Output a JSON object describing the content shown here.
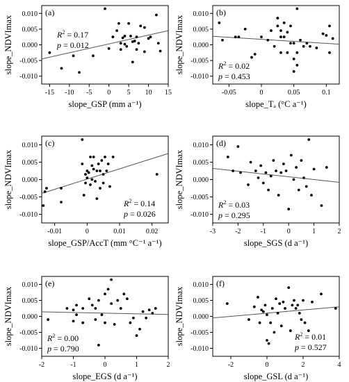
{
  "chart_data": [
    {
      "panel": "(a)",
      "type": "scatter",
      "xlabel": "slope_GSP (mm a⁻¹)",
      "ylabel": "slope_NDVImax",
      "xlim": [
        -17,
        15
      ],
      "ylim": [
        -0.0125,
        0.0125
      ],
      "xticks": [
        -15,
        -10,
        -5,
        0,
        5,
        10,
        15
      ],
      "yticks": [
        -0.01,
        -0.005,
        0.0,
        0.005,
        0.01
      ],
      "r2": "0.17",
      "p": "0.012",
      "stats_pos": "top-left",
      "fit": {
        "x": [
          -17,
          15
        ],
        "y": [
          -0.0045,
          0.0045
        ]
      },
      "points": [
        [
          -15,
          -0.0025
        ],
        [
          -12,
          -0.0075
        ],
        [
          -9,
          -0.0035
        ],
        [
          -7.5,
          -0.0088
        ],
        [
          -4,
          -0.0035
        ],
        [
          -1,
          0.0115
        ],
        [
          0,
          -0.0012
        ],
        [
          1,
          0.0025
        ],
        [
          2,
          0.0045
        ],
        [
          2.5,
          0.0068
        ],
        [
          3,
          0.0005
        ],
        [
          3,
          -0.0015
        ],
        [
          3.5,
          0.0022
        ],
        [
          4,
          0.0028
        ],
        [
          4,
          0.0002
        ],
        [
          4.5,
          -0.0005
        ],
        [
          5,
          0.0068
        ],
        [
          5.5,
          0.0028
        ],
        [
          6,
          0.001
        ],
        [
          6,
          -0.0055
        ],
        [
          6.5,
          0.0012
        ],
        [
          7,
          -0.0015
        ],
        [
          7,
          0.0025
        ],
        [
          7.5,
          0.0005
        ],
        [
          8,
          0.006
        ],
        [
          9,
          0.0055
        ],
        [
          9,
          -0.0022
        ],
        [
          10,
          0.002
        ],
        [
          10.5,
          0.0025
        ],
        [
          12,
          0.0095
        ],
        [
          12.5,
          0.0005
        ],
        [
          13,
          -0.002
        ]
      ]
    },
    {
      "panel": "(b)",
      "type": "scatter",
      "xlabel": "slope_Tₐ (°C a⁻¹)",
      "ylabel": "slope_NDVImax",
      "xlim": [
        -0.075,
        0.12
      ],
      "ylim": [
        -0.0125,
        0.0125
      ],
      "xticks": [
        -0.05,
        0.0,
        0.05,
        0.1
      ],
      "yticks": [
        -0.01,
        -0.005,
        0.0,
        0.005,
        0.01
      ],
      "r2": "0.02",
      "p": "0.453",
      "stats_pos": "bottom-left",
      "fit": {
        "x": [
          -0.075,
          0.12
        ],
        "y": [
          0.0027,
          0.0002
        ]
      },
      "points": [
        [
          -0.065,
          0.007
        ],
        [
          -0.06,
          0.0015
        ],
        [
          -0.04,
          0.0025
        ],
        [
          -0.035,
          0.0025
        ],
        [
          -0.025,
          0.005
        ],
        [
          -0.015,
          -0.004
        ],
        [
          -0.01,
          -0.003
        ],
        [
          0.0,
          0.0025
        ],
        [
          0.01,
          0.0015
        ],
        [
          0.015,
          0.0045
        ],
        [
          0.02,
          -0.0005
        ],
        [
          0.025,
          0.006
        ],
        [
          0.025,
          0.0085
        ],
        [
          0.03,
          0.0045
        ],
        [
          0.03,
          0.0025
        ],
        [
          0.03,
          -0.0025
        ],
        [
          0.035,
          0.007
        ],
        [
          0.035,
          0.0025
        ],
        [
          0.04,
          -0.0025
        ],
        [
          0.04,
          0.004
        ],
        [
          0.045,
          0.006
        ],
        [
          0.045,
          0.0005
        ],
        [
          0.05,
          -0.0045
        ],
        [
          0.05,
          -0.0085
        ],
        [
          0.05,
          0.0005
        ],
        [
          0.055,
          0.0115
        ],
        [
          0.055,
          -0.0065
        ],
        [
          0.055,
          -0.0025
        ],
        [
          0.06,
          0.0015
        ],
        [
          0.065,
          -0.0005
        ],
        [
          0.07,
          0.0005
        ],
        [
          0.075,
          -0.0005
        ],
        [
          0.085,
          -0.001
        ],
        [
          0.095,
          0.0035
        ],
        [
          0.1,
          0.003
        ],
        [
          0.105,
          0.006
        ],
        [
          0.105,
          -0.0025
        ],
        [
          0.11,
          0.002
        ]
      ]
    },
    {
      "panel": "(c)",
      "type": "scatter",
      "xlabel": "slope_GSP/AccT (mm °C⁻¹ a⁻¹)",
      "ylabel": "slope_NDVImax",
      "xlim": [
        -0.014,
        0.025
      ],
      "ylim": [
        -0.0125,
        0.0125
      ],
      "xticks": [
        -0.01,
        0.0,
        0.01,
        0.02
      ],
      "yticks": [
        -0.01,
        -0.005,
        0.0,
        0.005,
        0.01
      ],
      "r2": "0.14",
      "p": "0.026",
      "stats_pos": "bottom-right",
      "fit": {
        "x": [
          -0.014,
          0.025
        ],
        "y": [
          -0.004,
          0.0075
        ]
      },
      "points": [
        [
          -0.0135,
          -0.0075
        ],
        [
          -0.013,
          -0.0035
        ],
        [
          -0.0125,
          -0.0025
        ],
        [
          -0.008,
          -0.0065
        ],
        [
          -0.008,
          -0.0025
        ],
        [
          -0.0015,
          0.0115
        ],
        [
          -0.0015,
          0.0045
        ],
        [
          -0.001,
          -0.0045
        ],
        [
          -0.0005,
          0.0015
        ],
        [
          -0.0005,
          -0.001
        ],
        [
          0.0,
          0.0025
        ],
        [
          0.0,
          0.0005
        ],
        [
          0.0005,
          0.002
        ],
        [
          0.001,
          0.0065
        ],
        [
          0.001,
          -0.0015
        ],
        [
          0.0015,
          0.004
        ],
        [
          0.0015,
          0.0
        ],
        [
          0.002,
          0.0065
        ],
        [
          0.002,
          0.003
        ],
        [
          0.0025,
          -0.0005
        ],
        [
          0.003,
          0.0025
        ],
        [
          0.003,
          -0.0055
        ],
        [
          0.0035,
          0.0045
        ],
        [
          0.004,
          0.0025
        ],
        [
          0.004,
          -0.0025
        ],
        [
          0.0045,
          0.0055
        ],
        [
          0.005,
          0.0015
        ],
        [
          0.005,
          -0.001
        ],
        [
          0.0055,
          0.0065
        ],
        [
          0.006,
          0.0025
        ],
        [
          0.0065,
          0.0045
        ],
        [
          0.007,
          -0.002
        ],
        [
          0.008,
          0.0065
        ],
        [
          0.0215,
          0.0015
        ]
      ]
    },
    {
      "panel": "(d)",
      "type": "scatter",
      "xlabel": "slope_SGS (d a⁻¹)",
      "ylabel": "slope_NDVImax",
      "xlim": [
        -3,
        2
      ],
      "ylim": [
        -0.0125,
        0.0125
      ],
      "xticks": [
        -3,
        -2,
        -1,
        0,
        1,
        2
      ],
      "yticks": [
        -0.01,
        -0.005,
        0.0,
        0.005,
        0.01
      ],
      "r2": "0.03",
      "p": "0.295",
      "stats_pos": "bottom-left",
      "fit": {
        "x": [
          -3,
          2
        ],
        "y": [
          0.0032,
          -0.0008
        ]
      },
      "points": [
        [
          -2.4,
          0.0065
        ],
        [
          -2.2,
          0.0025
        ],
        [
          -2.0,
          0.0095
        ],
        [
          -1.9,
          0.002
        ],
        [
          -1.6,
          -0.0015
        ],
        [
          -1.5,
          0.005
        ],
        [
          -1.3,
          0.0025
        ],
        [
          -1.2,
          0.0005
        ],
        [
          -1.1,
          0.004
        ],
        [
          -1.0,
          -0.001
        ],
        [
          -0.9,
          0.002
        ],
        [
          -0.8,
          -0.003
        ],
        [
          -0.7,
          0.001
        ],
        [
          -0.6,
          0.0055
        ],
        [
          -0.5,
          0.0025
        ],
        [
          -0.4,
          -0.0045
        ],
        [
          -0.3,
          0.002
        ],
        [
          -0.2,
          0.0045
        ],
        [
          -0.1,
          0.0025
        ],
        [
          0.0,
          -0.0085
        ],
        [
          0.1,
          0.007
        ],
        [
          0.2,
          0.0
        ],
        [
          0.3,
          0.0035
        ],
        [
          0.4,
          -0.003
        ],
        [
          0.5,
          0.0055
        ],
        [
          0.6,
          0.0005
        ],
        [
          0.7,
          -0.002
        ],
        [
          0.8,
          0.0115
        ],
        [
          0.9,
          -0.0045
        ],
        [
          1.0,
          0.003
        ],
        [
          1.3,
          -0.0075
        ],
        [
          1.5,
          0.0035
        ]
      ]
    },
    {
      "panel": "(e)",
      "type": "scatter",
      "xlabel": "slope_EGS (d a⁻¹)",
      "ylabel": "slope_NDVImax",
      "xlim": [
        -2,
        2
      ],
      "ylim": [
        -0.0125,
        0.0125
      ],
      "xticks": [
        -2,
        -1,
        0,
        1,
        2
      ],
      "yticks": [
        -0.01,
        -0.005,
        0.0,
        0.005,
        0.01
      ],
      "r2": "0.00",
      "p": "0.790",
      "stats_pos": "bottom-left",
      "fit": {
        "x": [
          -2,
          2
        ],
        "y": [
          0.0014,
          0.0006
        ]
      },
      "points": [
        [
          -1.8,
          -0.001
        ],
        [
          -1.2,
          0.0025
        ],
        [
          -1.0,
          -0.0015
        ],
        [
          -1.0,
          0.002
        ],
        [
          -0.9,
          0.0035
        ],
        [
          -0.9,
          0.0005
        ],
        [
          -0.7,
          -0.002
        ],
        [
          -0.7,
          0.0025
        ],
        [
          -0.5,
          0.0055
        ],
        [
          -0.4,
          0.0035
        ],
        [
          -0.3,
          -0.001
        ],
        [
          -0.3,
          0.0025
        ],
        [
          -0.2,
          0.005
        ],
        [
          -0.2,
          -0.009
        ],
        [
          -0.1,
          0.0005
        ],
        [
          0.0,
          0.007
        ],
        [
          0.0,
          -0.002
        ],
        [
          0.1,
          0.0085
        ],
        [
          0.2,
          0.0115
        ],
        [
          0.2,
          0.004
        ],
        [
          0.3,
          -0.0025
        ],
        [
          0.4,
          0.005
        ],
        [
          0.5,
          0.0025
        ],
        [
          0.6,
          0.007
        ],
        [
          0.7,
          0.0055
        ],
        [
          0.8,
          -0.002
        ],
        [
          0.9,
          -0.0005
        ],
        [
          1.0,
          -0.006
        ],
        [
          1.1,
          -0.004
        ],
        [
          1.2,
          0.0015
        ],
        [
          1.3,
          -0.0005
        ],
        [
          1.4,
          0.002
        ],
        [
          1.5,
          0.001
        ],
        [
          1.6,
          0.0025
        ]
      ]
    },
    {
      "panel": "(f)",
      "type": "scatter",
      "xlabel": "slope_GSL (d a⁻¹)",
      "ylabel": "slope_NDVImax",
      "xlim": [
        -3,
        4
      ],
      "ylim": [
        -0.0125,
        0.0125
      ],
      "xticks": [
        -2,
        0,
        2,
        4
      ],
      "yticks": [
        -0.01,
        -0.005,
        0.0,
        0.005,
        0.01
      ],
      "r2": "0.01",
      "p": "0.527",
      "stats_pos": "bottom-right",
      "fit": {
        "x": [
          -3,
          4
        ],
        "y": [
          -0.0005,
          0.003
        ]
      },
      "points": [
        [
          -2.2,
          0.004
        ],
        [
          -1.0,
          -0.001
        ],
        [
          -0.7,
          0.003
        ],
        [
          -0.5,
          0.006
        ],
        [
          -0.4,
          -0.002
        ],
        [
          -0.3,
          0.002
        ],
        [
          -0.2,
          0.0015
        ],
        [
          -0.1,
          0.0035
        ],
        [
          0.0,
          -0.0075
        ],
        [
          0.0,
          0.0005
        ],
        [
          0.1,
          -0.0085
        ],
        [
          0.2,
          -0.002
        ],
        [
          0.3,
          0.0025
        ],
        [
          0.4,
          -0.005
        ],
        [
          0.5,
          0.0055
        ],
        [
          0.6,
          0.001
        ],
        [
          0.7,
          0.004
        ],
        [
          0.8,
          -0.003
        ],
        [
          0.9,
          0.0045
        ],
        [
          1.0,
          0.0025
        ],
        [
          1.2,
          0.009
        ],
        [
          1.3,
          -0.0045
        ],
        [
          1.4,
          0.0035
        ],
        [
          1.5,
          0.005
        ],
        [
          1.6,
          0.0025
        ],
        [
          1.7,
          0.0035
        ],
        [
          1.8,
          0.001
        ],
        [
          1.9,
          -0.001
        ],
        [
          2.0,
          0.005
        ],
        [
          2.1,
          -0.002
        ],
        [
          2.3,
          -0.0045
        ],
        [
          2.5,
          0.0045
        ],
        [
          3.0,
          0.007
        ],
        [
          3.8,
          0.0025
        ]
      ]
    }
  ]
}
